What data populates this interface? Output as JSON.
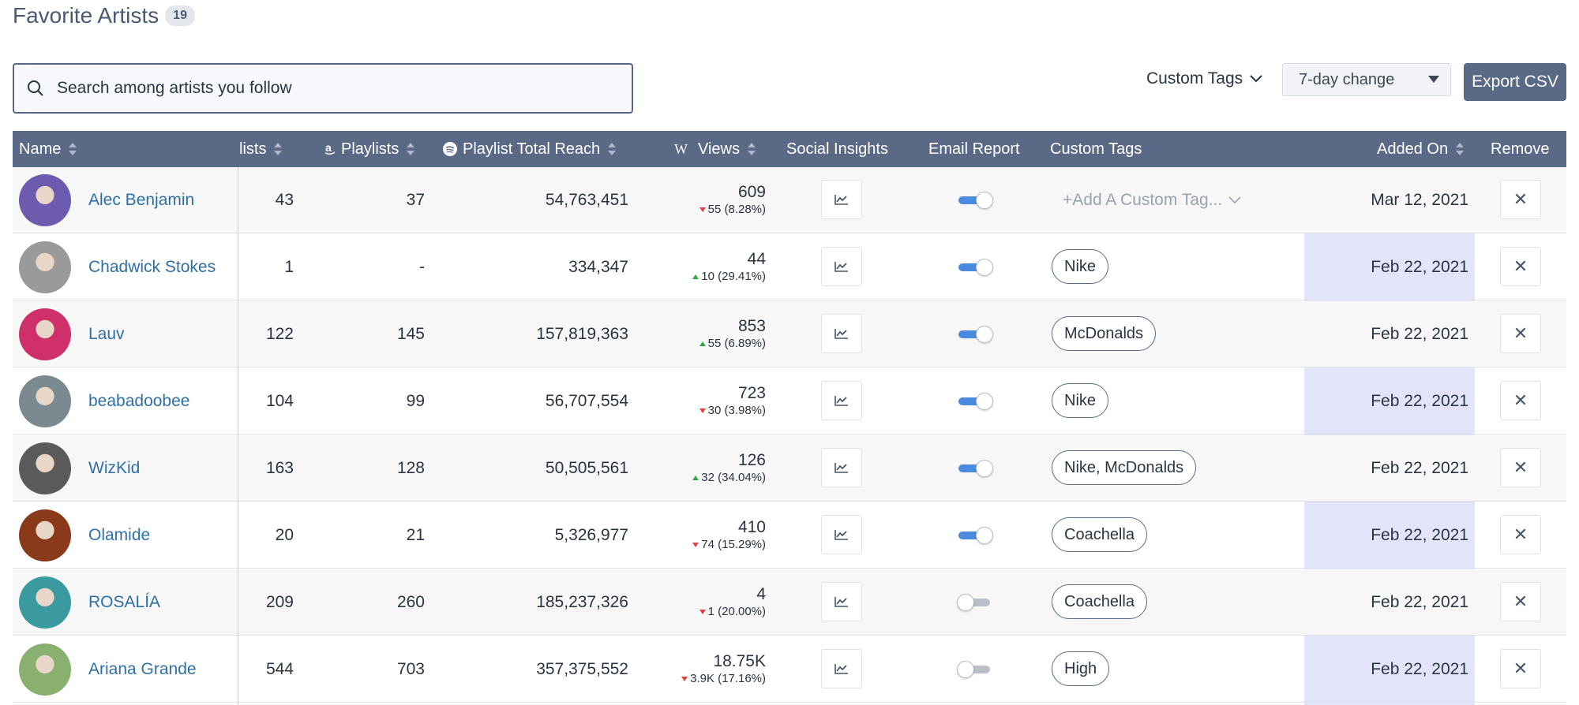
{
  "header": {
    "title": "Favorite Artists",
    "count": "19"
  },
  "search": {
    "placeholder": "Search among artists you follow"
  },
  "controls": {
    "custom_tags_label": "Custom Tags",
    "change_select_value": "7-day change",
    "export_label": "Export CSV"
  },
  "columns": {
    "name": "Name",
    "lists": "lists",
    "amazon_playlists": "Playlists",
    "spotify_reach": "Playlist Total Reach",
    "wiki_views": "Views",
    "social_insights": "Social Insights",
    "email_report": "Email Report",
    "custom_tags": "Custom Tags",
    "added_on": "Added On",
    "remove": "Remove"
  },
  "add_tag_placeholder": "+Add A Custom Tag...",
  "rows": [
    {
      "name": "Alec Benjamin",
      "lists": "43",
      "playlists": "37",
      "reach": "54,763,451",
      "views": "609",
      "delta": "55 (8.28%)",
      "dir": "down",
      "email_on": true,
      "tag": "",
      "added": "Mar 12, 2021",
      "avatar_color": "#6d5bb0"
    },
    {
      "name": "Chadwick Stokes",
      "lists": "1",
      "playlists": "-",
      "reach": "334,347",
      "views": "44",
      "delta": "10 (29.41%)",
      "dir": "up",
      "email_on": true,
      "tag": "Nike",
      "added": "Feb 22, 2021",
      "avatar_color": "#9a9a9a"
    },
    {
      "name": "Lauv",
      "lists": "122",
      "playlists": "145",
      "reach": "157,819,363",
      "views": "853",
      "delta": "55 (6.89%)",
      "dir": "up",
      "email_on": true,
      "tag": "McDonalds",
      "added": "Feb 22, 2021",
      "avatar_color": "#d0306a"
    },
    {
      "name": "beabadoobee",
      "lists": "104",
      "playlists": "99",
      "reach": "56,707,554",
      "views": "723",
      "delta": "30 (3.98%)",
      "dir": "down",
      "email_on": true,
      "tag": "Nike",
      "added": "Feb 22, 2021",
      "avatar_color": "#7a8a90"
    },
    {
      "name": "WizKid",
      "lists": "163",
      "playlists": "128",
      "reach": "50,505,561",
      "views": "126",
      "delta": "32 (34.04%)",
      "dir": "up",
      "email_on": true,
      "tag": "Nike, McDonalds",
      "added": "Feb 22, 2021",
      "avatar_color": "#5a5a5a"
    },
    {
      "name": "Olamide",
      "lists": "20",
      "playlists": "21",
      "reach": "5,326,977",
      "views": "410",
      "delta": "74 (15.29%)",
      "dir": "down",
      "email_on": true,
      "tag": "Coachella",
      "added": "Feb 22, 2021",
      "avatar_color": "#8a3a1a"
    },
    {
      "name": "ROSALÍA",
      "lists": "209",
      "playlists": "260",
      "reach": "185,237,326",
      "views": "4",
      "delta": "1 (20.00%)",
      "dir": "down",
      "email_on": false,
      "tag": "Coachella",
      "added": "Feb 22, 2021",
      "avatar_color": "#3a9aa0"
    },
    {
      "name": "Ariana Grande",
      "lists": "544",
      "playlists": "703",
      "reach": "357,375,552",
      "views": "18.75K",
      "delta": "3.9K (17.16%)",
      "dir": "down",
      "email_on": false,
      "tag": "High",
      "added": "Feb 22, 2021",
      "avatar_color": "#8ab070"
    }
  ],
  "icons": {
    "search": "search-icon",
    "amazon": "amazon-icon",
    "spotify": "spotify-icon",
    "wikipedia": "wikipedia-icon",
    "insight": "line-chart-icon",
    "remove": "close-icon",
    "chevron": "chevron-down-icon"
  }
}
